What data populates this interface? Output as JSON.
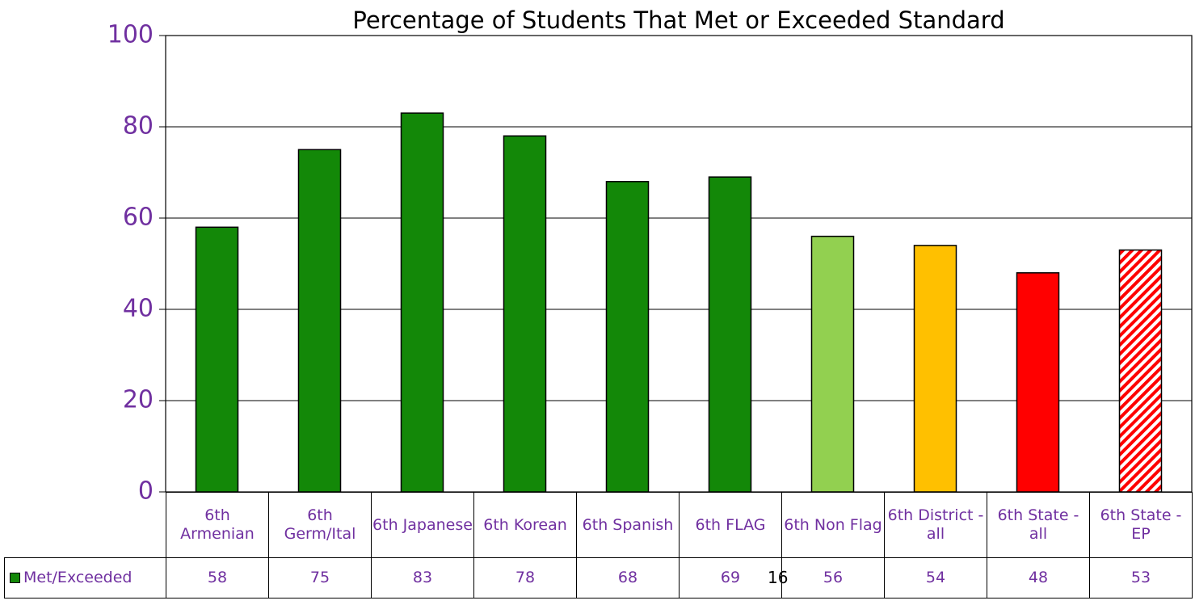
{
  "chart_data": {
    "type": "bar",
    "title": "Percentage of Students That Met or Exceeded Standard",
    "categories": [
      "6th Armenian",
      "6th Germ/Ital",
      "6th Japanese",
      "6th Korean",
      "6th Spanish",
      "6th FLAG",
      "6th Non Flag",
      "6th District - all",
      "6th State - all",
      "6th State - EP"
    ],
    "series": [
      {
        "name": "Met/Exceeded",
        "color": "#138808",
        "values": [
          58,
          75,
          83,
          78,
          68,
          69,
          56,
          54,
          48,
          53
        ]
      }
    ],
    "bar_colors": [
      "#138808",
      "#138808",
      "#138808",
      "#138808",
      "#138808",
      "#138808",
      "#92d050",
      "#ffc000",
      "#ff0000",
      "#ff0000"
    ],
    "bar_hatched": [
      false,
      false,
      false,
      false,
      false,
      false,
      false,
      false,
      false,
      true
    ],
    "ylim": [
      0,
      100
    ],
    "yticks": [
      0,
      20,
      40,
      60,
      80,
      100
    ],
    "grid": true,
    "data_table": true,
    "page_number": "16"
  }
}
